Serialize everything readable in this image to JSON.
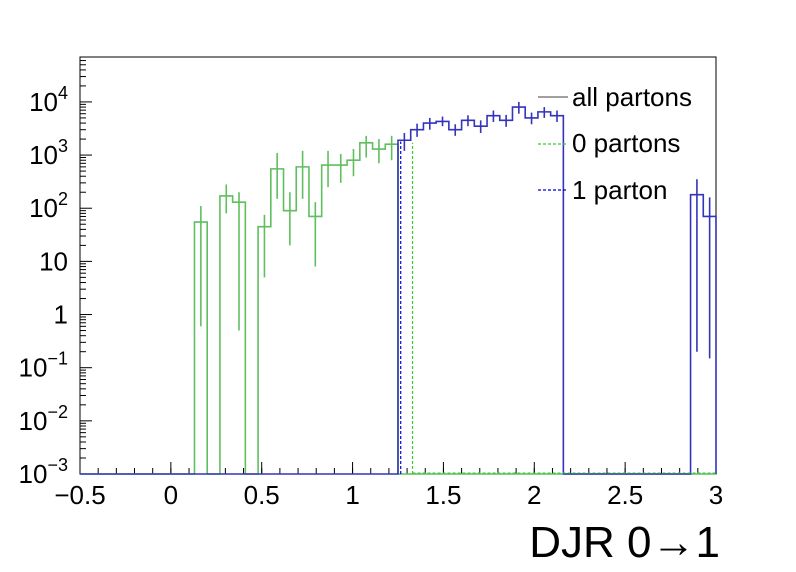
{
  "chart_data": {
    "type": "line",
    "xlabel": "DJR 0→1",
    "ylabel": "",
    "title": "",
    "yscale": "log",
    "xlim": [
      -0.5,
      3.0
    ],
    "ylim": [
      0.001,
      70000
    ],
    "xticks": [
      -0.5,
      0,
      0.5,
      1,
      1.5,
      2,
      2.5,
      3
    ],
    "xtick_labels": [
      "−0.5",
      "0",
      "0.5",
      "1",
      "1.5",
      "2",
      "2.5",
      "3"
    ],
    "yticks": [
      {
        "value": 0.001,
        "base": "10",
        "exp": "−3"
      },
      {
        "value": 0.01,
        "base": "10",
        "exp": "−2"
      },
      {
        "value": 0.1,
        "base": "10",
        "exp": "−1"
      },
      {
        "value": 1,
        "base": "1",
        "exp": ""
      },
      {
        "value": 10,
        "base": "10",
        "exp": ""
      },
      {
        "value": 100,
        "base": "10",
        "exp": "2"
      },
      {
        "value": 1000,
        "base": "10",
        "exp": "3"
      },
      {
        "value": 10000,
        "base": "10",
        "exp": "4"
      }
    ],
    "legend": {
      "position": "top-right",
      "entries": [
        {
          "label": "all partons",
          "color": "#808080",
          "style": "solid"
        },
        {
          "label": "0 partons",
          "color": "#33cc33",
          "style": "dashed"
        },
        {
          "label": "1 parton",
          "color": "#0000cc",
          "style": "dashed"
        }
      ]
    },
    "bin_width": 0.07,
    "bin_start": -0.5,
    "series": [
      {
        "name": "0 partons",
        "color": "#5fbf5f",
        "values": [
          null,
          null,
          null,
          null,
          null,
          null,
          null,
          null,
          null,
          55,
          null,
          170,
          130,
          null,
          45,
          550,
          90,
          600,
          70,
          650,
          650,
          800,
          1700,
          1300,
          1600,
          null,
          null,
          null,
          null,
          null,
          null,
          null,
          null,
          null,
          null,
          null,
          null,
          null,
          null,
          null,
          null,
          null,
          null,
          null,
          null,
          null,
          null,
          null,
          null,
          null
        ],
        "errors_low": [
          null,
          null,
          null,
          null,
          null,
          null,
          null,
          null,
          null,
          0.6,
          null,
          80,
          0.5,
          null,
          5,
          150,
          20,
          150,
          8,
          250,
          300,
          400,
          900,
          700,
          800,
          null,
          null,
          null,
          null,
          null,
          null,
          null,
          null,
          null,
          null,
          null,
          null,
          null,
          null,
          null,
          null,
          null,
          null,
          null,
          null,
          null,
          null,
          null,
          null,
          null
        ],
        "errors_high": [
          null,
          null,
          null,
          null,
          null,
          null,
          null,
          null,
          null,
          110,
          null,
          280,
          200,
          null,
          75,
          1100,
          200,
          1200,
          130,
          1200,
          1050,
          1300,
          2300,
          2000,
          2300,
          null,
          null,
          null,
          null,
          null,
          null,
          null,
          null,
          null,
          null,
          null,
          null,
          null,
          null,
          null,
          null,
          null,
          null,
          null,
          null,
          null,
          null,
          null,
          null,
          null
        ]
      },
      {
        "name": "1 parton",
        "color": "#3333bb",
        "values": [
          null,
          null,
          null,
          null,
          null,
          null,
          null,
          null,
          null,
          null,
          null,
          null,
          null,
          null,
          null,
          null,
          null,
          null,
          null,
          null,
          null,
          null,
          null,
          null,
          null,
          1900,
          3000,
          4000,
          4300,
          3000,
          4500,
          3500,
          5500,
          4500,
          8000,
          5000,
          6500,
          5500,
          null,
          null,
          null,
          null,
          null,
          null,
          null,
          null,
          null,
          null,
          180,
          70
        ],
        "errors_low": [
          null,
          null,
          null,
          null,
          null,
          null,
          null,
          null,
          null,
          null,
          null,
          null,
          null,
          null,
          null,
          null,
          null,
          null,
          null,
          null,
          null,
          null,
          null,
          null,
          null,
          1200,
          2200,
          3000,
          3500,
          2300,
          3500,
          2600,
          4200,
          3400,
          6000,
          3800,
          5000,
          4200,
          null,
          null,
          null,
          null,
          null,
          null,
          null,
          null,
          null,
          0.4,
          0.2,
          0.15
        ],
        "errors_high": [
          null,
          null,
          null,
          null,
          null,
          null,
          null,
          null,
          null,
          null,
          null,
          null,
          null,
          null,
          null,
          null,
          null,
          null,
          null,
          null,
          null,
          null,
          null,
          null,
          null,
          2600,
          3900,
          5000,
          5300,
          3800,
          5600,
          4500,
          6900,
          5700,
          10000,
          6300,
          8000,
          6900,
          null,
          null,
          null,
          null,
          null,
          null,
          null,
          null,
          null,
          90,
          350,
          160
        ]
      }
    ],
    "markers": [
      {
        "series": "1 parton",
        "x": 1.265,
        "y": 1800
      },
      {
        "series": "0 partons",
        "x": 1.33,
        "y": 1700
      }
    ]
  }
}
